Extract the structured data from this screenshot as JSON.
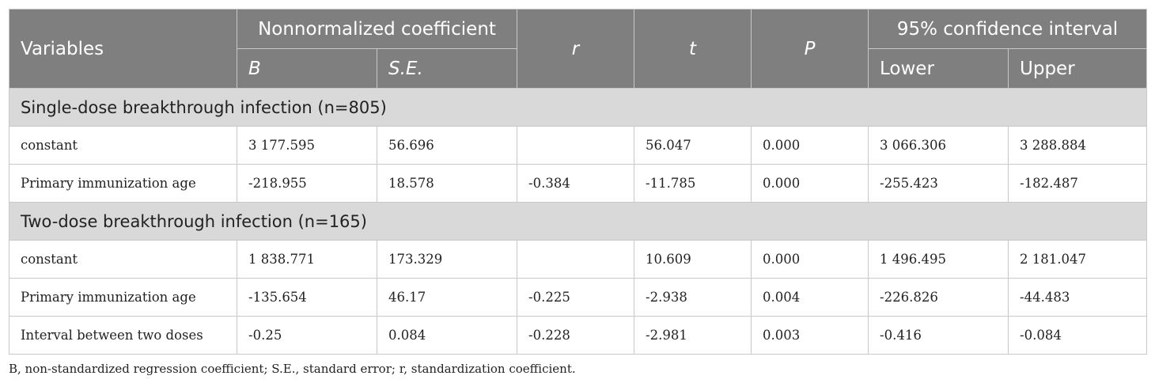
{
  "header": {
    "variables": "Variables",
    "nonnormalized": "Nonnormalized coefficient",
    "b": "B",
    "se": "S.E.",
    "r": "r",
    "t": "t",
    "p": "P",
    "ci": "95% confidence interval",
    "lower": "Lower",
    "upper": "Upper"
  },
  "groups": [
    {
      "title": "Single-dose breakthrough infection (n=805)",
      "rows": [
        [
          "constant",
          "3 177.595",
          "56.696",
          "",
          "56.047",
          "0.000",
          "3 066.306",
          "3 288.884"
        ],
        [
          "Primary immunization age",
          "-218.955",
          "18.578",
          "-0.384",
          "-11.785",
          "0.000",
          "-255.423",
          "-182.487"
        ]
      ]
    },
    {
      "title": "Two-dose breakthrough infection (n=165)",
      "rows": [
        [
          "constant",
          "1 838.771",
          "173.329",
          "",
          "10.609",
          "0.000",
          "1 496.495",
          "2 181.047"
        ],
        [
          "Primary immunization age",
          "-135.654",
          "46.17",
          "-0.225",
          "-2.938",
          "0.004",
          "-226.826",
          "-44.483"
        ],
        [
          "Interval between two doses",
          "-0.25",
          "0.084",
          "-0.228",
          "-2.981",
          "0.003",
          "-0.416",
          "-0.084"
        ]
      ]
    }
  ],
  "footnote": "B, non-standardized regression coefficient; S.E., standard error; r, standardization coefficient."
}
